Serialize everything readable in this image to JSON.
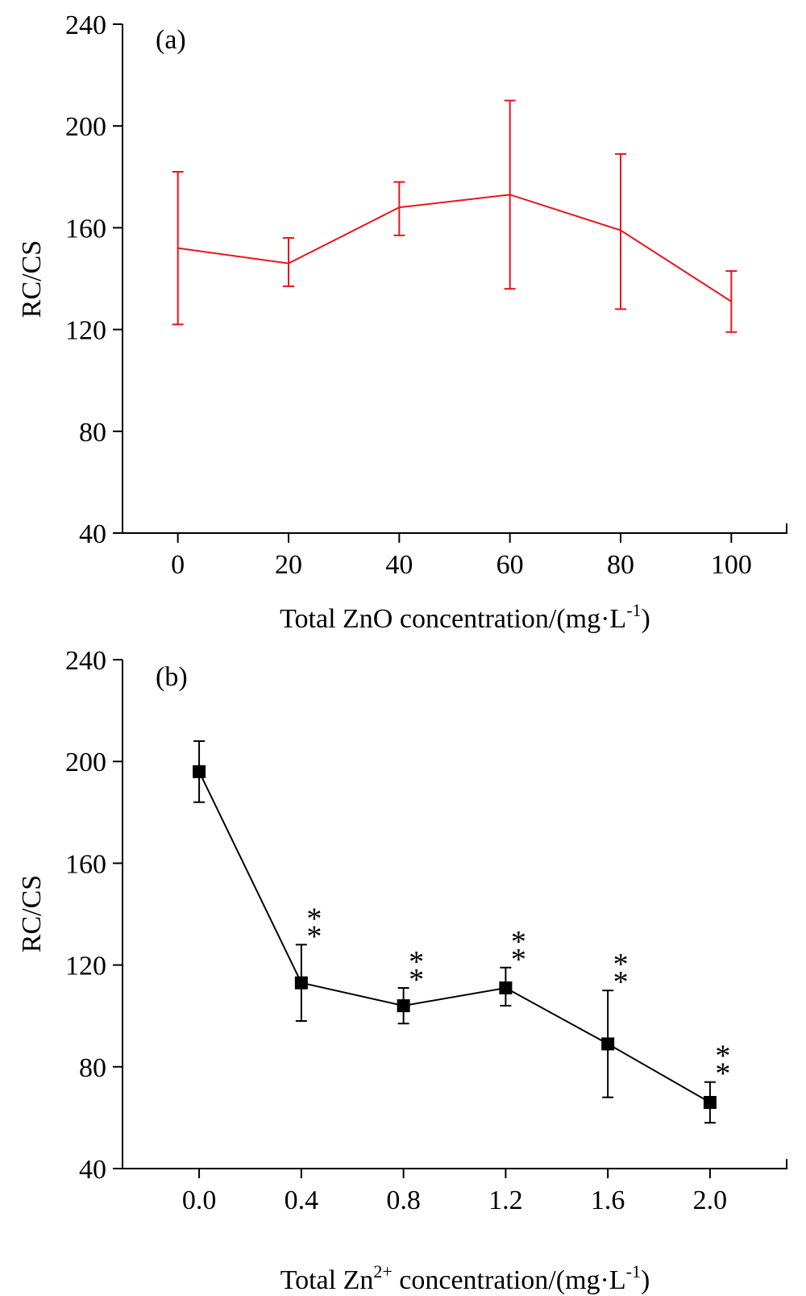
{
  "chart_data": [
    {
      "type": "line",
      "panel_label": "(a)",
      "ylabel": "RC/CS",
      "xlabel": {
        "prefix": "Total ZnO concentration/(mg·L",
        "sup": "-1",
        "suffix": ")"
      },
      "x": [
        0,
        20,
        40,
        60,
        80,
        100
      ],
      "x_tick_labels": [
        "0",
        "20",
        "40",
        "60",
        "80",
        "100"
      ],
      "xlim": [
        -10,
        110
      ],
      "ylim": [
        40,
        240
      ],
      "y_ticks": [
        40,
        80,
        120,
        160,
        200,
        240
      ],
      "grid": false,
      "legend": "none",
      "series": [
        {
          "color": "#e8141c",
          "marker": "none",
          "values": [
            152,
            146,
            168,
            173,
            159,
            131
          ],
          "err_low": [
            122,
            137,
            157,
            136,
            128,
            119
          ],
          "err_high": [
            182,
            156,
            178,
            210,
            189,
            143
          ],
          "significance": [
            "",
            "",
            "",
            "",
            "",
            ""
          ]
        }
      ]
    },
    {
      "type": "line",
      "panel_label": "(b)",
      "ylabel": "RC/CS",
      "xlabel": {
        "prefix": "Total Zn",
        "sup": "2+",
        "middle": " concentration/(mg·L",
        "sup2": "-1",
        "suffix": ")"
      },
      "x": [
        0.0,
        0.4,
        0.8,
        1.2,
        1.6,
        2.0
      ],
      "x_tick_labels": [
        "0.0",
        "0.4",
        "0.8",
        "1.2",
        "1.6",
        "2.0"
      ],
      "xlim": [
        -0.3,
        2.3
      ],
      "ylim": [
        40,
        240
      ],
      "y_ticks": [
        40,
        80,
        120,
        160,
        200,
        240
      ],
      "grid": false,
      "legend": "none",
      "series": [
        {
          "color": "#000000",
          "marker": "square",
          "values": [
            196,
            113,
            104,
            111,
            89,
            66
          ],
          "err_low": [
            184,
            98,
            97,
            104,
            68,
            58
          ],
          "err_high": [
            208,
            128,
            111,
            119,
            110,
            74
          ],
          "significance": [
            "",
            "**",
            "**",
            "**",
            "**",
            "**"
          ]
        }
      ]
    }
  ]
}
